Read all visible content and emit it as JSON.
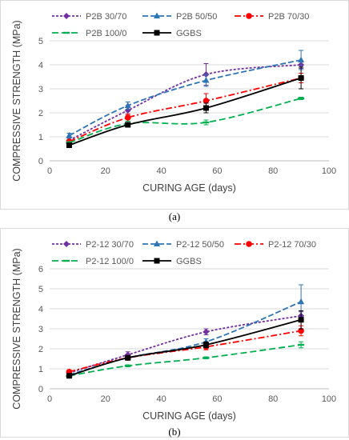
{
  "chart_data": [
    {
      "type": "line",
      "panel_label": "(a)",
      "xlabel": "CURING AGE (days)",
      "ylabel": "COMPRESSIVE STRENGTH (MPa)",
      "xlim": [
        0,
        100
      ],
      "ylim": [
        0,
        5
      ],
      "xticks": [
        "0",
        "20",
        "40",
        "60",
        "80",
        "100"
      ],
      "yticks": [
        "0",
        "1",
        "2",
        "3",
        "4",
        "5"
      ],
      "grid": "horizontal",
      "legend": "top",
      "x": [
        7,
        28,
        56,
        90
      ],
      "series": [
        {
          "name": "P2B 30/70",
          "color": "#7030a0",
          "dash": "3,2",
          "marker": "diamond",
          "values": [
            0.85,
            2.1,
            3.6,
            4.0
          ],
          "errors": [
            0.1,
            0.2,
            0.45,
            0.15
          ]
        },
        {
          "name": "P2B 50/50",
          "color": "#2e75b6",
          "dash": "7,3",
          "marker": "triangle",
          "values": [
            1.05,
            2.3,
            3.35,
            4.2
          ],
          "errors": [
            0.1,
            0.15,
            0.25,
            0.4
          ]
        },
        {
          "name": "P2B 70/30",
          "color": "#ff0000",
          "dash": "8,3,2,3",
          "marker": "circle",
          "values": [
            0.8,
            1.8,
            2.5,
            3.45
          ],
          "errors": [
            0.05,
            0.15,
            0.3,
            0.2
          ]
        },
        {
          "name": "P2B 100/0",
          "color": "#00b050",
          "dash": "8,4",
          "marker": "dash",
          "values": [
            0.75,
            1.55,
            1.6,
            2.6
          ],
          "errors": [
            0.05,
            0.1,
            0.1,
            0.05
          ]
        },
        {
          "name": "GGBS",
          "color": "#000000",
          "dash": "",
          "marker": "square",
          "values": [
            0.65,
            1.5,
            2.2,
            3.45
          ],
          "errors": [
            0.05,
            0.1,
            0.2,
            0.45
          ]
        }
      ]
    },
    {
      "type": "line",
      "panel_label": "(b)",
      "xlabel": "CURING AGE (days)",
      "ylabel": "COMPRESSIVE STRENGTH (MPa)",
      "xlim": [
        0,
        100
      ],
      "ylim": [
        0,
        6
      ],
      "xticks": [
        "0",
        "20",
        "40",
        "60",
        "80",
        "100"
      ],
      "yticks": [
        "0",
        "1",
        "2",
        "3",
        "4",
        "5",
        "6"
      ],
      "grid": "horizontal",
      "legend": "top",
      "x": [
        7,
        28,
        56,
        90
      ],
      "series": [
        {
          "name": "P2-12 30/70",
          "color": "#7030a0",
          "dash": "3,2",
          "marker": "diamond",
          "values": [
            0.8,
            1.7,
            2.85,
            3.65
          ],
          "errors": [
            0.05,
            0.15,
            0.15,
            0.2
          ]
        },
        {
          "name": "P2-12 50/50",
          "color": "#2e75b6",
          "dash": "7,3",
          "marker": "triangle",
          "values": [
            0.7,
            1.55,
            2.35,
            4.35
          ],
          "errors": [
            0.05,
            0.1,
            0.15,
            0.85
          ]
        },
        {
          "name": "P2-12 70/30",
          "color": "#ff0000",
          "dash": "8,3,2,3",
          "marker": "circle",
          "values": [
            0.85,
            1.55,
            2.1,
            2.9
          ],
          "errors": [
            0.05,
            0.1,
            0.15,
            0.25
          ]
        },
        {
          "name": "P2-12 100/0",
          "color": "#00b050",
          "dash": "8,4",
          "marker": "dash",
          "values": [
            0.65,
            1.15,
            1.55,
            2.2
          ],
          "errors": [
            0.05,
            0.05,
            0.05,
            0.15
          ]
        },
        {
          "name": "GGBS",
          "color": "#000000",
          "dash": "",
          "marker": "square",
          "values": [
            0.65,
            1.55,
            2.2,
            3.45
          ],
          "errors": [
            0.05,
            0.1,
            0.15,
            0.45
          ]
        }
      ]
    }
  ]
}
